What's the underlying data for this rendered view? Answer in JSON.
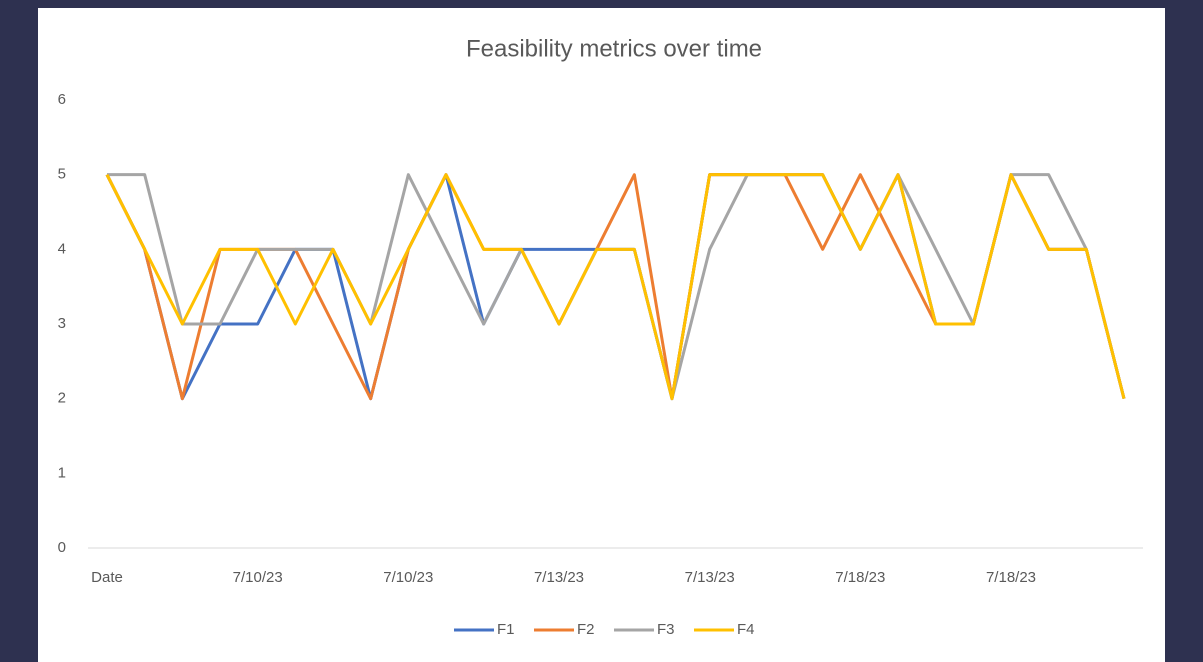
{
  "chart_data": {
    "type": "line",
    "title": "Feasibility metrics over time",
    "categories": [
      "Date",
      null,
      null,
      null,
      "7/10/23",
      null,
      null,
      null,
      "7/10/23",
      null,
      null,
      null,
      "7/13/23",
      null,
      null,
      null,
      "7/13/23",
      null,
      null,
      null,
      "7/18/23",
      null,
      null,
      null,
      "7/18/23",
      null,
      null,
      null
    ],
    "series": [
      {
        "name": "F1",
        "color": "#4472c4",
        "values": [
          5,
          4,
          2,
          3,
          3,
          4,
          4,
          2,
          4,
          5,
          3,
          4,
          4,
          4,
          4,
          2,
          5,
          5,
          5,
          5,
          4,
          5,
          3,
          3,
          5,
          4,
          4,
          2
        ]
      },
      {
        "name": "F2",
        "color": "#ed7d31",
        "values": [
          5,
          4,
          2,
          4,
          4,
          4,
          3,
          2,
          4,
          5,
          4,
          4,
          3,
          4,
          5,
          2,
          5,
          5,
          5,
          4,
          5,
          4,
          3,
          3,
          5,
          4,
          4,
          2
        ]
      },
      {
        "name": "F3",
        "color": "#a5a5a5",
        "values": [
          5,
          5,
          3,
          3,
          4,
          4,
          4,
          3,
          5,
          4,
          3,
          4,
          3,
          4,
          4,
          2,
          4,
          5,
          5,
          5,
          4,
          5,
          4,
          3,
          5,
          5,
          4,
          2
        ]
      },
      {
        "name": "F4",
        "color": "#ffc000",
        "values": [
          5,
          4,
          3,
          4,
          4,
          3,
          4,
          3,
          4,
          5,
          4,
          4,
          3,
          4,
          4,
          2,
          5,
          5,
          5,
          5,
          4,
          5,
          3,
          3,
          5,
          4,
          4,
          2
        ]
      }
    ],
    "ylim": [
      0,
      6
    ],
    "yticks": [
      0,
      1,
      2,
      3,
      4,
      5,
      6
    ],
    "grid": false,
    "legend": "bottom"
  }
}
